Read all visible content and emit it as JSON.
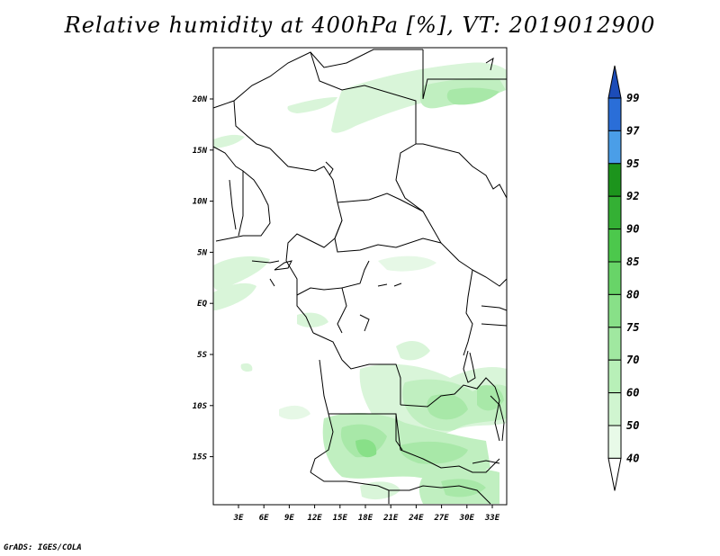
{
  "title": "Relative humidity at 400hPa [%], VT: 2019012900",
  "credit": "GrADS: IGES/COLA",
  "lat_ticks": [
    "20N",
    "15N",
    "10N",
    "5N",
    "EQ",
    "5S",
    "10S",
    "15S"
  ],
  "lon_ticks": [
    "3E",
    "6E",
    "9E",
    "12E",
    "15E",
    "18E",
    "21E",
    "24E",
    "27E",
    "30E",
    "33E"
  ],
  "colorbar": {
    "levels": [
      "40",
      "50",
      "60",
      "70",
      "75",
      "80",
      "85",
      "90",
      "92",
      "95",
      "97",
      "99"
    ],
    "colors": [
      "#ffffff",
      "#e8fae8",
      "#d0f5d0",
      "#b8f0b8",
      "#a0e8a0",
      "#88e088",
      "#68d468",
      "#4cc84c",
      "#34b034",
      "#1c941c",
      "#4a9ee8",
      "#2a6ed8",
      "#1c4cb8"
    ]
  },
  "map": {
    "lon_range": [
      0,
      35
    ],
    "lat_range": [
      -20,
      25
    ]
  }
}
